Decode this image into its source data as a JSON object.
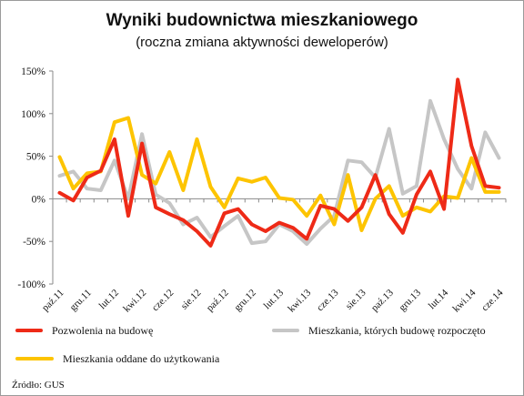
{
  "chart_data": {
    "type": "line",
    "title": "Wyniki budownictwa mieszkaniowego",
    "subtitle": "(roczna zmiana aktywności deweloperów)",
    "xlabel": "",
    "ylabel": "",
    "ylim": [
      -100,
      150
    ],
    "yticks": [
      "150%",
      "100%",
      "50%",
      "0%",
      "-50%",
      "-100%"
    ],
    "ytick_values": [
      150,
      100,
      50,
      0,
      -50,
      -100
    ],
    "grid": false,
    "legend_position": "bottom",
    "x": [
      "paź.11",
      "lis.11",
      "gru.11",
      "sty.12",
      "lut.12",
      "mar.12",
      "kwi.12",
      "maj.12",
      "cze.12",
      "lip.12",
      "sie.12",
      "wrz.12",
      "paź.12",
      "lis.12",
      "gru.12",
      "sty.13",
      "lut.13",
      "mar.13",
      "kwi.13",
      "maj.13",
      "cze.13",
      "lip.13",
      "sie.13",
      "wrz.13",
      "paź.13",
      "lis.13",
      "gru.13",
      "sty.14",
      "lut.14",
      "mar.14",
      "kwi.14",
      "maj.14",
      "cze.14"
    ],
    "x_tick_labels": [
      "paź.11",
      "",
      "gru.11",
      "",
      "lut.12",
      "",
      "kwi.12",
      "",
      "cze.12",
      "",
      "sie.12",
      "",
      "paź.12",
      "",
      "gru.12",
      "",
      "lut.13",
      "",
      "kwi.13",
      "",
      "cze.13",
      "",
      "sie.13",
      "",
      "paź.13",
      "",
      "gru.13",
      "",
      "lut.14",
      "",
      "kwi.14",
      "",
      "cze.14"
    ],
    "series": [
      {
        "name": "Pozwolenia na budowę",
        "color": "#ee2a17",
        "values": [
          7,
          -2,
          25,
          33,
          70,
          -20,
          65,
          -10,
          -18,
          -25,
          -38,
          -55,
          -17,
          -12,
          -30,
          -38,
          -28,
          -34,
          -47,
          -8,
          -12,
          -26,
          -10,
          28,
          -18,
          -40,
          5,
          32,
          -12,
          140,
          62,
          15,
          13
        ]
      },
      {
        "name": "Mieszkania, których budowę rozpoczęto",
        "color": "#c6c6c6",
        "values": [
          27,
          32,
          12,
          10,
          45,
          0,
          76,
          5,
          -5,
          -30,
          -22,
          -45,
          -32,
          -20,
          -52,
          -50,
          -30,
          -38,
          -53,
          -35,
          -20,
          45,
          43,
          25,
          82,
          6,
          15,
          115,
          70,
          35,
          12,
          78,
          48
        ]
      },
      {
        "name": "Mieszkania oddane do użytkowania",
        "color": "#fdc400",
        "values": [
          49,
          12,
          30,
          32,
          90,
          95,
          28,
          18,
          55,
          10,
          70,
          14,
          -10,
          24,
          20,
          25,
          1,
          -1,
          -20,
          4,
          -30,
          28,
          -37,
          0,
          15,
          -20,
          -10,
          -15,
          3,
          1,
          48,
          8,
          8
        ]
      }
    ]
  },
  "source": "Źródło: GUS"
}
